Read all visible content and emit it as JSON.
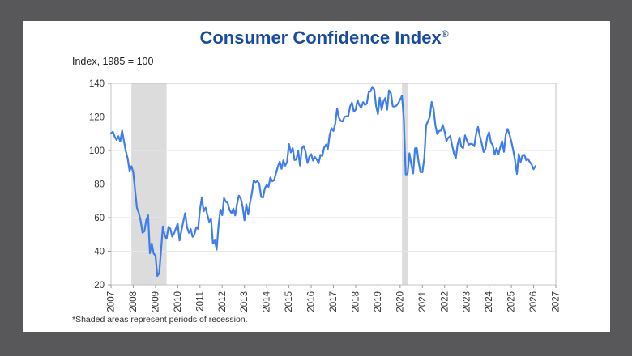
{
  "window": {
    "background_color": "#58585a",
    "card_color": "#ffffff"
  },
  "title": {
    "text": "Consumer Confidence Index",
    "registered_mark": "®",
    "color": "#1a4c9e"
  },
  "subtitle": "Index, 1985 = 100",
  "footnote": "*Shaded areas represent periods of recession.",
  "chart_data": {
    "type": "line",
    "title": "Consumer Confidence Index®",
    "ylabel": "Index, 1985 = 100",
    "xlim": [
      2007,
      2027
    ],
    "ylim": [
      20,
      140
    ],
    "x_ticks": [
      2007,
      2008,
      2009,
      2010,
      2011,
      2012,
      2013,
      2014,
      2015,
      2016,
      2017,
      2018,
      2019,
      2020,
      2021,
      2022,
      2023,
      2024,
      2025,
      2026,
      2027
    ],
    "y_ticks": [
      20,
      40,
      60,
      80,
      100,
      120,
      140
    ],
    "grid": "horizontal",
    "gridline_color": "#e7e7e7",
    "frame_color": "#c3c3c3",
    "tick_color": "#9a9a9a",
    "tick_label_color": "#333333",
    "recession_color": "#dcdcdc",
    "recessions": [
      {
        "start": "2007-12",
        "end": "2009-06"
      },
      {
        "start": "2020-02",
        "end": "2020-04"
      }
    ],
    "series": [
      {
        "name": "Consumer Confidence Index",
        "color": "#3e7dea",
        "frequency": "monthly",
        "data": [
          {
            "year": 2007,
            "values": [
              110.2,
              111.2,
              108.2,
              106.3,
              108.5,
              105.3,
              111.9,
              105.6,
              99.5,
              95.2,
              87.8,
              90.6
            ]
          },
          {
            "year": 2008,
            "values": [
              87.3,
              76.4,
              65.9,
              62.8,
              58.1,
              51.0,
              51.9,
              58.5,
              61.4,
              38.8,
              44.7,
              38.6
            ]
          },
          {
            "year": 2009,
            "values": [
              37.4,
              25.3,
              26.9,
              40.8,
              54.8,
              49.3,
              47.4,
              54.5,
              53.4,
              48.7,
              50.6,
              53.6
            ]
          },
          {
            "year": 2010,
            "values": [
              56.5,
              46.4,
              52.3,
              57.7,
              62.7,
              54.3,
              51.0,
              53.2,
              48.6,
              49.9,
              54.3,
              53.3
            ]
          },
          {
            "year": 2011,
            "values": [
              64.8,
              72.0,
              63.8,
              66.0,
              61.7,
              57.6,
              59.2,
              44.5,
              46.4,
              40.9,
              55.2,
              64.8
            ]
          },
          {
            "year": 2012,
            "values": [
              61.5,
              71.6,
              69.5,
              68.7,
              64.4,
              62.7,
              65.4,
              61.3,
              68.4,
              73.1,
              71.5,
              66.7
            ]
          },
          {
            "year": 2013,
            "values": [
              58.4,
              68.0,
              61.9,
              69.0,
              74.3,
              82.1,
              81.0,
              81.8,
              80.2,
              72.4,
              72.0,
              77.5
            ]
          },
          {
            "year": 2014,
            "values": [
              79.4,
              78.3,
              83.9,
              81.7,
              82.2,
              86.4,
              90.3,
              93.4,
              89.0,
              94.1,
              91.0,
              93.1
            ]
          },
          {
            "year": 2015,
            "values": [
              103.8,
              98.8,
              101.4,
              94.3,
              94.6,
              99.8,
              91.0,
              101.3,
              102.6,
              99.1,
              92.6,
              96.3
            ]
          },
          {
            "year": 2016,
            "values": [
              97.8,
              94.0,
              96.1,
              94.7,
              92.4,
              97.4,
              96.7,
              101.8,
              103.5,
              100.8,
              109.4,
              113.3
            ]
          },
          {
            "year": 2017,
            "values": [
              111.6,
              116.1,
              124.9,
              119.4,
              117.6,
              117.3,
              120.0,
              120.4,
              120.6,
              126.2,
              128.6,
              123.1
            ]
          },
          {
            "year": 2018,
            "values": [
              124.3,
              130.0,
              127.0,
              125.6,
              128.8,
              127.1,
              127.9,
              134.7,
              135.3,
              137.9,
              136.4,
              126.6
            ]
          },
          {
            "year": 2019,
            "values": [
              121.7,
              131.4,
              124.2,
              129.2,
              131.3,
              124.3,
              135.8,
              134.2,
              126.3,
              126.1,
              126.8,
              128.2
            ]
          },
          {
            "year": 2020,
            "values": [
              130.4,
              132.6,
              118.8,
              85.7,
              85.9,
              98.3,
              91.7,
              86.3,
              101.3,
              101.4,
              92.9,
              87.1
            ]
          },
          {
            "year": 2021,
            "values": [
              87.1,
              95.2,
              114.9,
              117.5,
              120.0,
              128.9,
              125.1,
              115.2,
              109.8,
              111.6,
              111.9,
              115.2
            ]
          },
          {
            "year": 2022,
            "values": [
              111.1,
              105.7,
              107.6,
              108.6,
              103.2,
              98.4,
              95.3,
              103.6,
              107.8,
              102.2,
              101.4,
              109.0
            ]
          },
          {
            "year": 2023,
            "values": [
              106.0,
              103.4,
              104.0,
              103.7,
              102.5,
              110.1,
              114.0,
              108.7,
              104.3,
              99.1,
              101.0,
              108.3
            ]
          },
          {
            "year": 2024,
            "values": [
              110.9,
              104.8,
              103.1,
              97.5,
              101.3,
              97.8,
              101.9,
              105.6,
              99.2,
              109.6,
              112.8,
              109.5
            ]
          },
          {
            "year": 2025,
            "values": [
              105.3,
              100.1,
              93.9,
              86.0,
              98.0,
              93.0,
              97.2,
              97.4,
              94.2,
              95.0,
              93.0,
              91.5
            ]
          },
          {
            "year": 2026,
            "values": [
              88.8,
              90.7
            ]
          }
        ]
      }
    ],
    "legend": "none"
  }
}
